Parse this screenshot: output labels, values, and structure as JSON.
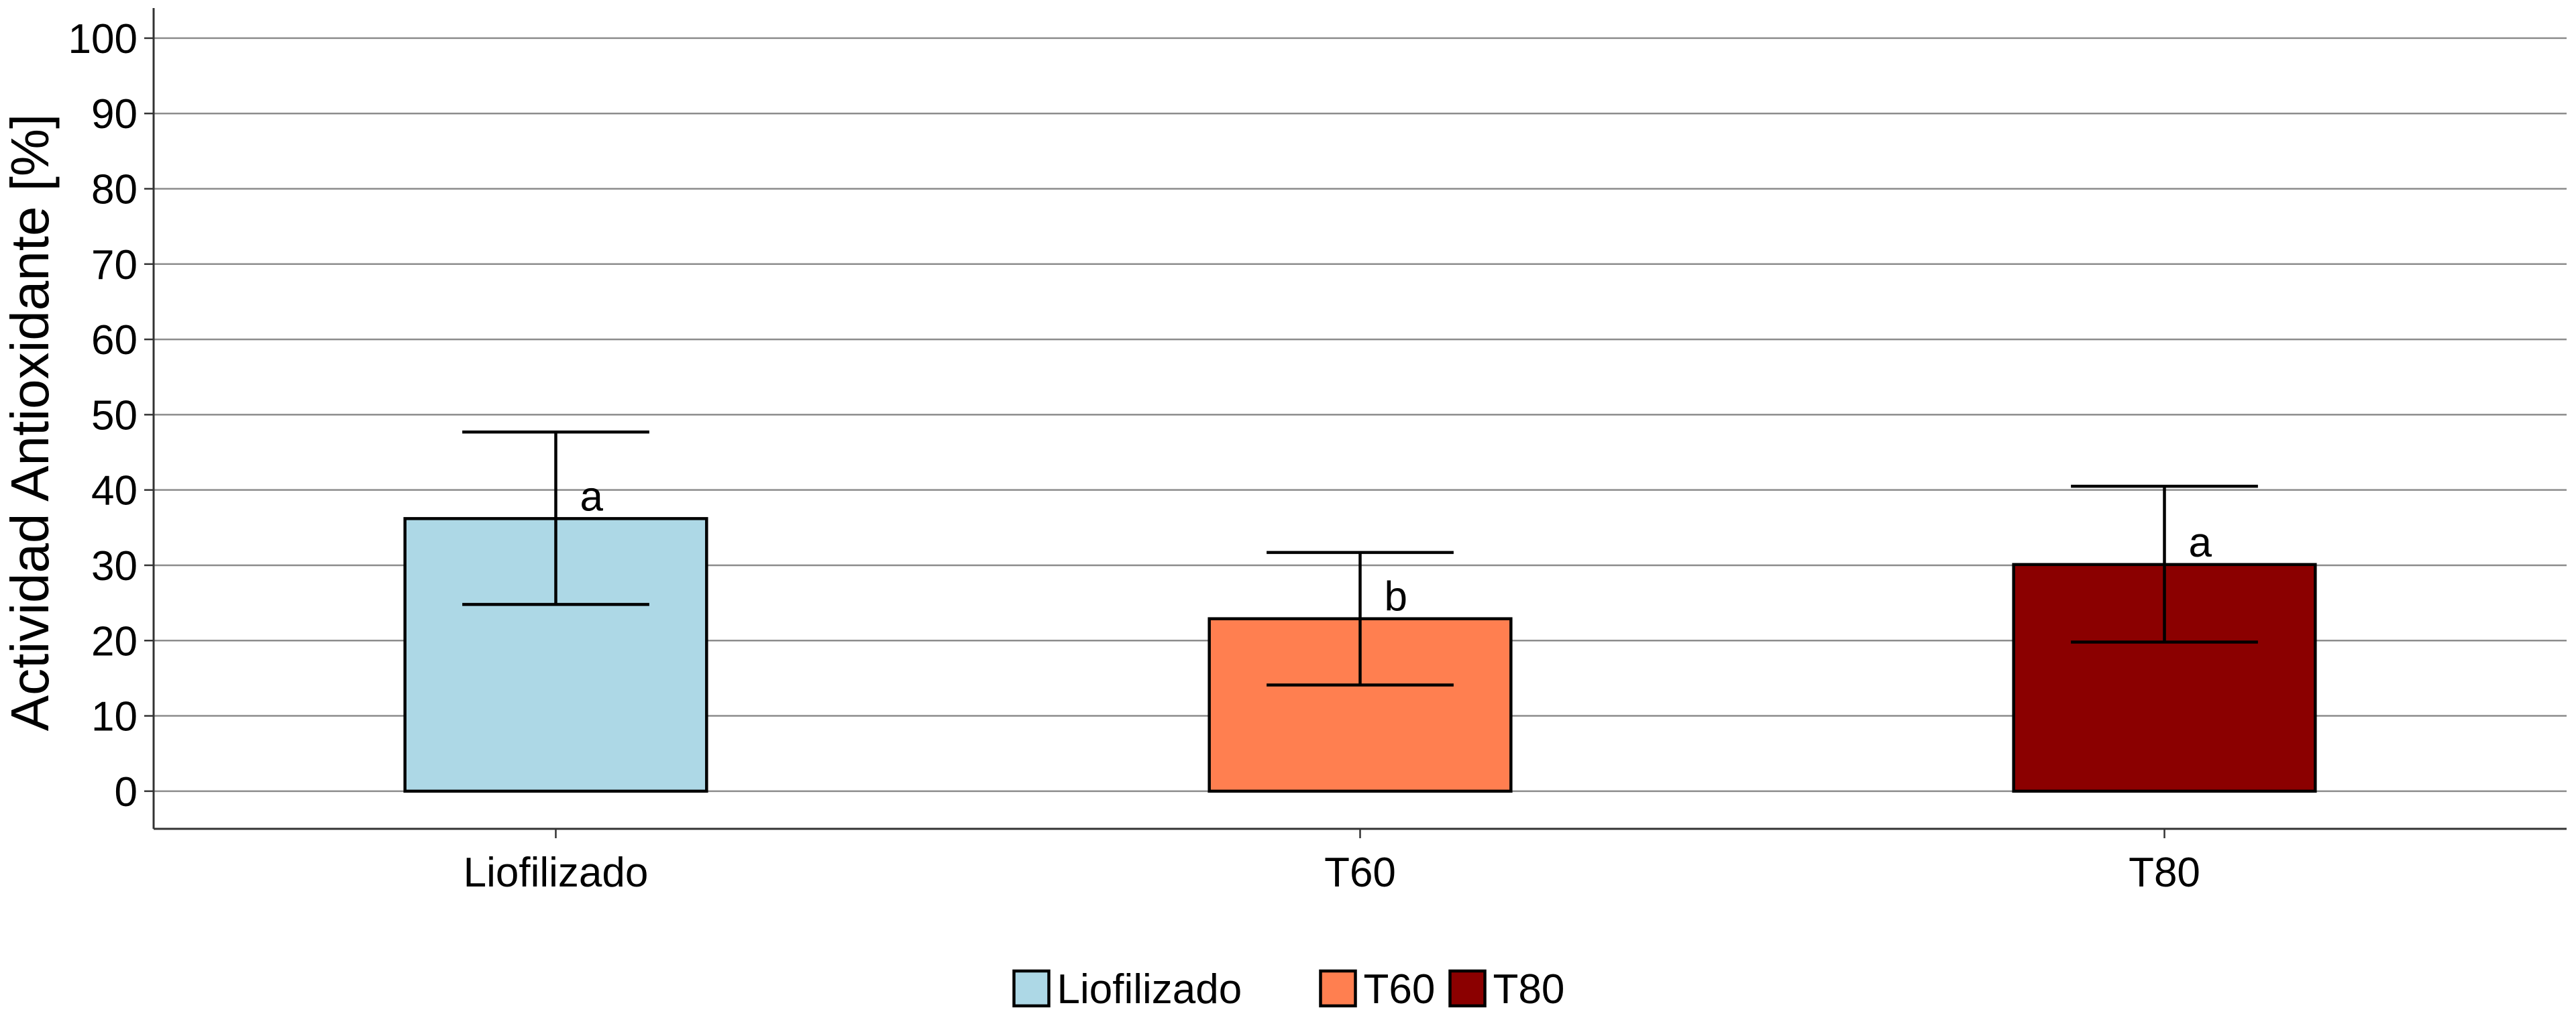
{
  "chart_data": {
    "type": "bar",
    "title": "",
    "xlabel": "",
    "ylabel": "Actividad Antioxidante [%]",
    "ylim": [
      -5,
      104
    ],
    "yticks": [
      0,
      10,
      20,
      30,
      40,
      50,
      60,
      70,
      80,
      90,
      100
    ],
    "grid": "horizontal",
    "legend_position": "bottom",
    "categories": [
      "Liofilizado",
      "T60",
      "T80"
    ],
    "values": [
      36.2,
      22.9,
      30.1
    ],
    "error_low": [
      24.8,
      14.1,
      19.8
    ],
    "error_high": [
      47.7,
      31.7,
      40.5
    ],
    "significance_labels": [
      "a",
      "b",
      "a"
    ],
    "colors": [
      "#add8e6",
      "#ff7f50",
      "#8b0000"
    ],
    "legend": [
      "Liofilizado",
      "T60",
      "T80"
    ]
  }
}
